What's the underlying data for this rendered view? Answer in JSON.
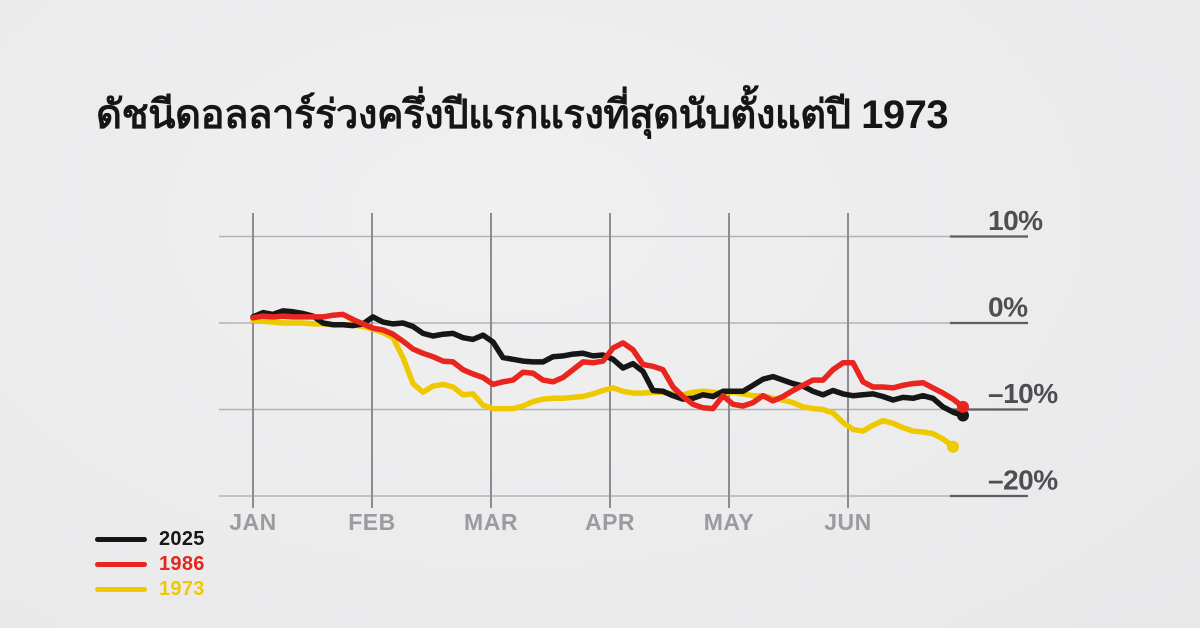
{
  "header": {
    "title": "ดัชนีดอลลาร์ร่วงครึ่งปีแรกแรงที่สุดนับตั้งแต่ปี 1973"
  },
  "legend": {
    "items": [
      {
        "label": "2025",
        "color": "#161616"
      },
      {
        "label": "1986",
        "color": "#e8251e"
      },
      {
        "label": "1973",
        "color": "#eec900"
      }
    ]
  },
  "colors": {
    "background_center": "#f0f0f1",
    "background_edge": "#e1e1e3",
    "grid_vertical": "#8c8c92",
    "grid_horizontal": "#b2b2b8",
    "grid_right_segment": "#5d5d63",
    "month_label": "#9b9ba1",
    "value_label": "#4e4f53",
    "title_text": "#161616"
  },
  "chart_data": {
    "type": "line",
    "title": "ดัชนีดอลลาร์ร่วงครึ่งปีแรกแรงที่สุดนับตั้งแต่ปี 1973",
    "unit": "%",
    "grid": true,
    "legend_position": "bottom-left",
    "x_axis": {
      "labels": [
        "JAN",
        "FEB",
        "MAR",
        "APR",
        "MAY",
        "JUN"
      ]
    },
    "y_axis": {
      "ticks": [
        {
          "value": 10,
          "label": "10%"
        },
        {
          "value": 0,
          "label": "0%"
        },
        {
          "value": -10,
          "label": "–10%"
        },
        {
          "value": -20,
          "label": "–20%"
        }
      ],
      "range": [
        -20,
        12
      ]
    },
    "x_note": "values sampled evenly from start of January to end of June; step = 10px of a 119px month",
    "series": [
      {
        "name": "2025",
        "color": "#161616",
        "endpoint_dot": true,
        "values": [
          0.7,
          1.2,
          1.0,
          1.4,
          1.3,
          1.1,
          0.8,
          0.0,
          -0.2,
          -0.2,
          -0.3,
          -0.1,
          0.7,
          0.1,
          -0.1,
          0.0,
          -0.4,
          -1.2,
          -1.5,
          -1.3,
          -1.2,
          -1.7,
          -1.9,
          -1.4,
          -2.2,
          -4.0,
          -4.2,
          -4.4,
          -4.5,
          -4.5,
          -3.9,
          -3.8,
          -3.6,
          -3.5,
          -3.8,
          -3.7,
          -4.2,
          -5.2,
          -4.7,
          -5.6,
          -7.8,
          -7.9,
          -8.4,
          -8.8,
          -8.7,
          -8.3,
          -8.5,
          -7.9,
          -7.9,
          -7.9,
          -7.2,
          -6.5,
          -6.2,
          -6.6,
          -7.0,
          -7.3,
          -7.9,
          -8.3,
          -7.8,
          -8.2,
          -8.4,
          -8.3,
          -8.2,
          -8.5,
          -8.9,
          -8.6,
          -8.7,
          -8.4,
          -8.7,
          -9.7,
          -10.3,
          -10.7
        ]
      },
      {
        "name": "1986",
        "color": "#e8251e",
        "endpoint_dot": true,
        "values": [
          0.6,
          0.8,
          0.7,
          0.8,
          0.7,
          0.7,
          0.7,
          0.7,
          0.9,
          1.0,
          0.4,
          -0.1,
          -0.6,
          -0.8,
          -1.3,
          -2.1,
          -3.0,
          -3.5,
          -3.9,
          -4.4,
          -4.5,
          -5.4,
          -5.9,
          -6.3,
          -7.1,
          -6.8,
          -6.6,
          -5.7,
          -5.8,
          -6.6,
          -6.8,
          -6.3,
          -5.4,
          -4.5,
          -4.6,
          -4.4,
          -2.9,
          -2.3,
          -3.1,
          -4.8,
          -5.0,
          -5.4,
          -7.4,
          -8.5,
          -9.4,
          -9.8,
          -9.9,
          -8.4,
          -9.4,
          -9.6,
          -9.2,
          -8.4,
          -9.0,
          -8.5,
          -7.8,
          -7.2,
          -6.6,
          -6.6,
          -5.4,
          -4.6,
          -4.6,
          -6.8,
          -7.4,
          -7.4,
          -7.5,
          -7.2,
          -7.0,
          -6.9,
          -7.5,
          -8.1,
          -8.8,
          -9.7
        ]
      },
      {
        "name": "1973",
        "color": "#eec900",
        "endpoint_dot": true,
        "values": [
          0.3,
          0.2,
          0.1,
          0.0,
          0.0,
          0.0,
          -0.1,
          -0.1,
          -0.2,
          -0.2,
          -0.2,
          -0.4,
          -0.7,
          -1.1,
          -1.7,
          -4.0,
          -7.0,
          -8.0,
          -7.3,
          -7.1,
          -7.4,
          -8.3,
          -8.2,
          -9.5,
          -9.9,
          -9.9,
          -9.9,
          -9.6,
          -9.1,
          -8.8,
          -8.7,
          -8.7,
          -8.6,
          -8.5,
          -8.2,
          -7.8,
          -7.5,
          -7.9,
          -8.1,
          -8.1,
          -8.0,
          -8.0,
          -8.2,
          -8.3,
          -8.0,
          -7.9,
          -8.0,
          -8.1,
          -8.0,
          -8.2,
          -8.4,
          -8.4,
          -8.7,
          -8.9,
          -9.2,
          -9.7,
          -9.9,
          -10.0,
          -10.4,
          -11.5,
          -12.3,
          -12.5,
          -11.8,
          -11.3,
          -11.6,
          -12.1,
          -12.5,
          -12.6,
          -12.8,
          -13.4,
          -14.3
        ]
      }
    ]
  }
}
